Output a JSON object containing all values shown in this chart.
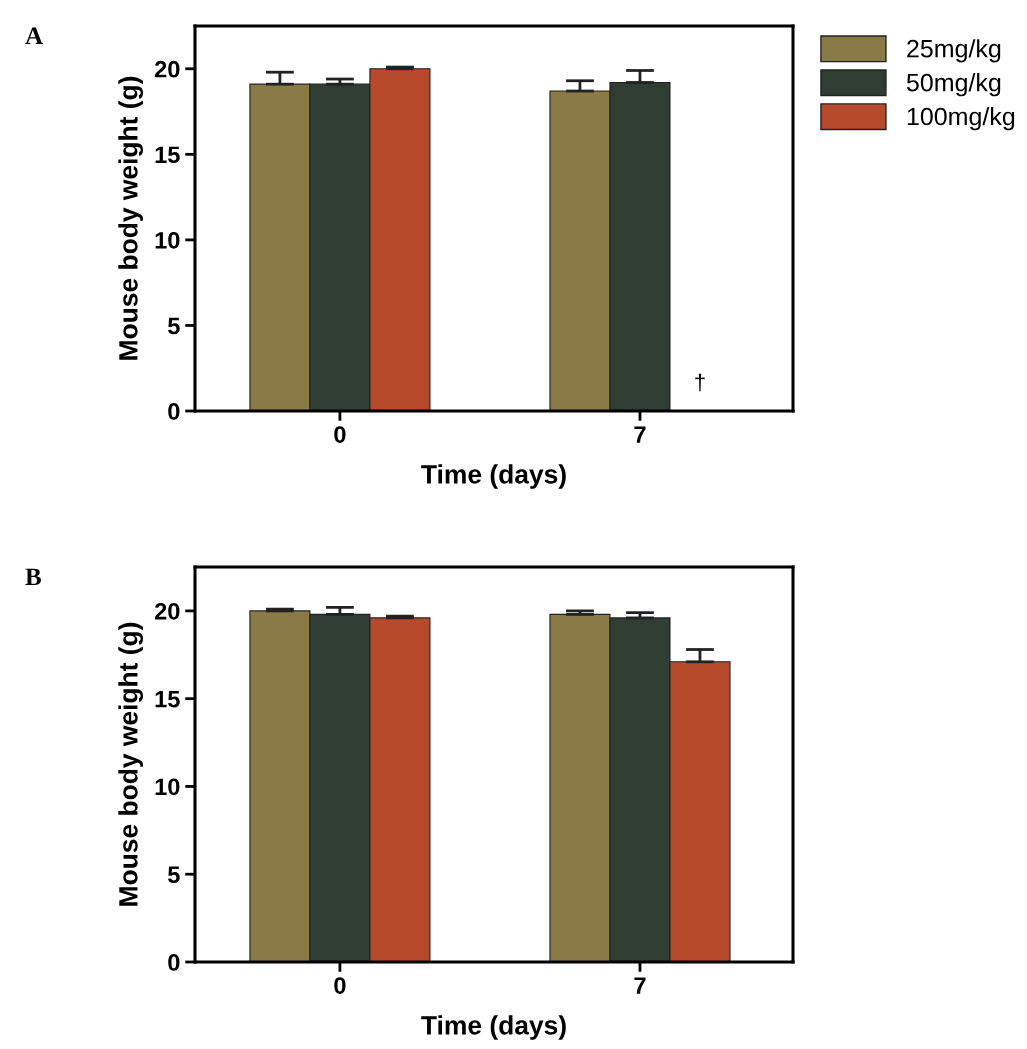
{
  "chart_data": [
    {
      "type": "bar",
      "xlabel": "Time (days)",
      "ylabel": "Mouse body weight (g)",
      "categories": [
        "0",
        "7"
      ],
      "ylim": [
        0,
        22.5
      ],
      "yticks": [
        0,
        5,
        10,
        15,
        20
      ],
      "legend": "right",
      "grid": false,
      "series": [
        {
          "name": "25mg/kg",
          "color": "#8a7a45",
          "values": [
            19.1,
            18.7
          ],
          "errors": [
            [
              19.1,
              19.8
            ],
            [
              18.7,
              19.3
            ]
          ]
        },
        {
          "name": "50mg/kg",
          "color": "#2f3d33",
          "values": [
            19.1,
            19.2
          ],
          "errors": [
            [
              19.1,
              19.4
            ],
            [
              19.2,
              19.9
            ]
          ]
        },
        {
          "name": "100mg/kg",
          "color": "#b84a2c",
          "values": [
            20.0,
            null
          ],
          "errors": [
            [
              20.0,
              20.1
            ],
            null
          ]
        }
      ],
      "annotations": [
        "A",
        "†"
      ]
    },
    {
      "type": "bar",
      "xlabel": "Time (days)",
      "ylabel": "Mouse body weight (g)",
      "categories": [
        "0",
        "7"
      ],
      "ylim": [
        0,
        22.5
      ],
      "yticks": [
        0,
        5,
        10,
        15,
        20
      ],
      "grid": false,
      "series": [
        {
          "color": "#8a7a45",
          "values": [
            20.0,
            19.8
          ],
          "errors": [
            [
              20.0,
              20.1
            ],
            [
              19.8,
              20.0
            ]
          ]
        },
        {
          "color": "#2f3d33",
          "values": [
            19.8,
            19.6
          ],
          "errors": [
            [
              19.8,
              20.2
            ],
            [
              19.6,
              19.9
            ]
          ]
        },
        {
          "color": "#b84a2c",
          "values": [
            19.6,
            17.1
          ],
          "errors": [
            [
              19.6,
              19.7
            ],
            [
              17.1,
              17.8
            ]
          ]
        }
      ],
      "annotations": [
        "B"
      ]
    }
  ]
}
